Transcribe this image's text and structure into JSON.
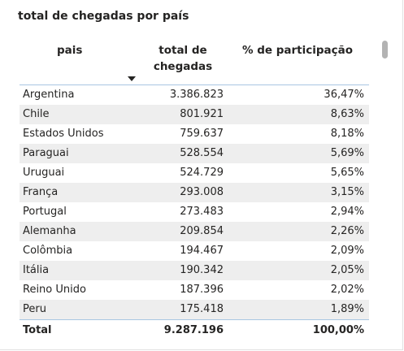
{
  "title": "total de chegadas por país",
  "columns": {
    "pais": "pais",
    "total_line1": "total de",
    "total_line2": "chegadas",
    "pct": "% de participação"
  },
  "rows": [
    {
      "pais": "Argentina",
      "total": "3.386.823",
      "pct": "36,47%"
    },
    {
      "pais": "Chile",
      "total": "801.921",
      "pct": "8,63%"
    },
    {
      "pais": "Estados Unidos",
      "total": "759.637",
      "pct": "8,18%"
    },
    {
      "pais": "Paraguai",
      "total": "528.554",
      "pct": "5,69%"
    },
    {
      "pais": "Uruguai",
      "total": "524.729",
      "pct": "5,65%"
    },
    {
      "pais": "França",
      "total": "293.008",
      "pct": "3,15%"
    },
    {
      "pais": "Portugal",
      "total": "273.483",
      "pct": "2,94%"
    },
    {
      "pais": "Alemanha",
      "total": "209.854",
      "pct": "2,26%"
    },
    {
      "pais": "Colômbia",
      "total": "194.467",
      "pct": "2,09%"
    },
    {
      "pais": "Itália",
      "total": "190.342",
      "pct": "2,05%"
    },
    {
      "pais": "Reino Unido",
      "total": "187.396",
      "pct": "2,02%"
    },
    {
      "pais": "Peru",
      "total": "175.418",
      "pct": "1,89%"
    }
  ],
  "totals": {
    "label": "Total",
    "total": "9.287.196",
    "pct": "100,00%"
  },
  "sort": {
    "column": "total de chegadas",
    "direction": "descending",
    "icon": "sort-descending-icon"
  },
  "colors": {
    "header_rule": "#a9c6e2",
    "alt_row": "#eeeeee",
    "text": "#252423",
    "scrollbar": "#b3b3b3"
  }
}
